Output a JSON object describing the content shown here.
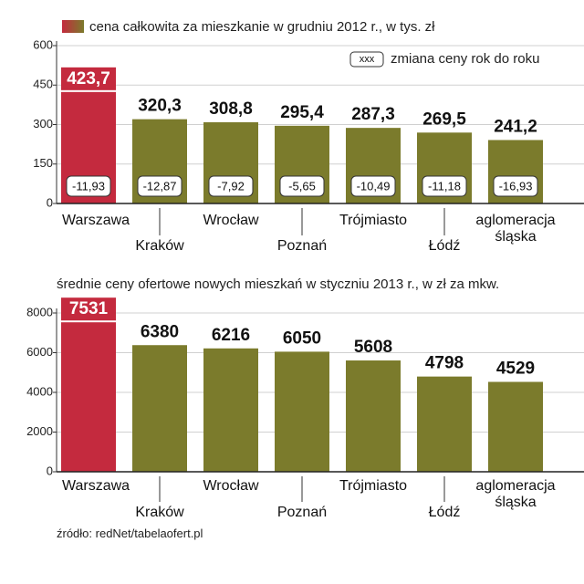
{
  "chart_data": [
    {
      "type": "bar",
      "legend": "cena całkowita za mieszkanie w grudniu 2012 r., w tys. zł",
      "change_legend_symbol": "xxx",
      "change_legend": "zmiana ceny rok do roku",
      "categories": [
        "Warszawa",
        "Kraków",
        "Wrocław",
        "Poznań",
        "Trójmiasto",
        "Łódź",
        "aglomeracja śląska"
      ],
      "values": [
        423.7,
        320.3,
        308.8,
        295.4,
        287.3,
        269.5,
        241.2
      ],
      "value_labels": [
        "423,7",
        "320,3",
        "308,8",
        "295,4",
        "287,3",
        "269,5",
        "241,2"
      ],
      "changes": [
        -11.93,
        -12.87,
        -7.92,
        -5.65,
        -10.49,
        -11.18,
        -16.93
      ],
      "change_labels": [
        "-11,93",
        "-12,87",
        "-7,92",
        "-5,65",
        "-10,49",
        "-11,18",
        "-16,93"
      ],
      "colors": [
        "#c42a3e",
        "#7b7b2c",
        "#7b7b2c",
        "#7b7b2c",
        "#7b7b2c",
        "#7b7b2c",
        "#7b7b2c"
      ],
      "ylim": [
        0,
        600
      ],
      "yticks": [
        0,
        150,
        300,
        450,
        600
      ],
      "grid": true
    },
    {
      "type": "bar",
      "title": "średnie ceny ofertowe nowych mieszkań w styczniu 2013 r., w zł za mkw.",
      "categories": [
        "Warszawa",
        "Kraków",
        "Wrocław",
        "Poznań",
        "Trójmiasto",
        "Łódź",
        "aglomeracja śląska"
      ],
      "values": [
        7531,
        6380,
        6216,
        6050,
        5608,
        4798,
        4529
      ],
      "colors": [
        "#c42a3e",
        "#7b7b2c",
        "#7b7b2c",
        "#7b7b2c",
        "#7b7b2c",
        "#7b7b2c",
        "#7b7b2c"
      ],
      "ylim": [
        0,
        8000
      ],
      "yticks": [
        0,
        2000,
        4000,
        6000,
        8000
      ],
      "grid": true
    }
  ],
  "source": "źródło: redNet/tabelaofert.pl"
}
